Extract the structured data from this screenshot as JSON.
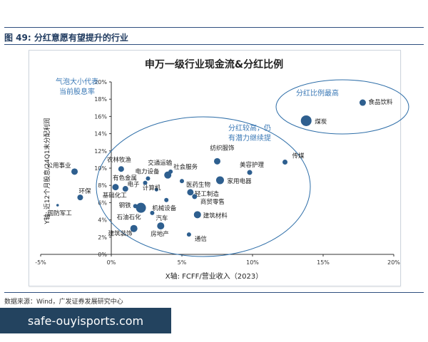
{
  "figure": {
    "caption": "图 49:  分红意愿有望提升的行业",
    "source": "数据来源：Wind，广发证券发展研究中心"
  },
  "watermark": {
    "text": "safe-ouyisports.com"
  },
  "chart_data": {
    "type": "scatter",
    "title": "申万一级行业现金流&分红比例",
    "xlabel": "X轴: FCFF/营业收入（2023）",
    "ylabel": "Y轴: 近12个月股息/24Q1末分配利润",
    "xlim": [
      -5,
      20
    ],
    "ylim": [
      0,
      20
    ],
    "x_ticks": [
      "-5%",
      "0%",
      "5%",
      "10%",
      "15%",
      "20%"
    ],
    "y_ticks": [
      "0%",
      "2%",
      "4%",
      "6%",
      "8%",
      "10%",
      "12%",
      "14%",
      "16%",
      "18%",
      "20%"
    ],
    "grid": false,
    "size_note": "气泡大小代表\n当前股息率",
    "annotations": [
      "分红比例最高",
      "分红较高，仍\n有潜力继续提"
    ],
    "points": [
      {
        "name": "食品饮料",
        "x": 17.8,
        "y": 17.6,
        "size": 9
      },
      {
        "name": "煤炭",
        "x": 13.8,
        "y": 15.5,
        "size": 15
      },
      {
        "name": "传媒",
        "x": 12.3,
        "y": 10.7,
        "size": 7
      },
      {
        "name": "美容护理",
        "x": 9.8,
        "y": 9.5,
        "size": 7
      },
      {
        "name": "纺织服饰",
        "x": 7.5,
        "y": 10.8,
        "size": 9
      },
      {
        "name": "社会服务",
        "x": 4.2,
        "y": 9.6,
        "size": 6
      },
      {
        "name": "交通运输",
        "x": 4.0,
        "y": 9.2,
        "size": 10
      },
      {
        "name": "医药生物",
        "x": 5.0,
        "y": 8.5,
        "size": 6
      },
      {
        "name": "家用电器",
        "x": 7.7,
        "y": 8.6,
        "size": 11
      },
      {
        "name": "电力设备",
        "x": 2.6,
        "y": 8.8,
        "size": 6
      },
      {
        "name": "电子",
        "x": 2.4,
        "y": 8.3,
        "size": 6
      },
      {
        "name": "轻工制造",
        "x": 5.6,
        "y": 7.2,
        "size": 9
      },
      {
        "name": "商贸零售",
        "x": 5.9,
        "y": 6.7,
        "size": 7
      },
      {
        "name": "计算机",
        "x": 3.2,
        "y": 7.5,
        "size": 5
      },
      {
        "name": "机械设备",
        "x": 3.9,
        "y": 6.3,
        "size": 6
      },
      {
        "name": "建筑材料",
        "x": 6.1,
        "y": 4.6,
        "size": 10
      },
      {
        "name": "农林牧渔",
        "x": 0.7,
        "y": 9.9,
        "size": 8
      },
      {
        "name": "公用事业",
        "x": -2.6,
        "y": 9.6,
        "size": 9
      },
      {
        "name": "有色金属",
        "x": 0.3,
        "y": 7.8,
        "size": 9
      },
      {
        "name": "基础化工",
        "x": 1.0,
        "y": 7.6,
        "size": 8
      },
      {
        "name": "钢铁",
        "x": 1.7,
        "y": 5.6,
        "size": 6
      },
      {
        "name": "环保",
        "x": -2.2,
        "y": 6.6,
        "size": 8
      },
      {
        "name": "石油石化",
        "x": 2.1,
        "y": 5.4,
        "size": 14
      },
      {
        "name": "国防军工",
        "x": -3.8,
        "y": 5.7,
        "size": 3
      },
      {
        "name": "汽车",
        "x": 2.9,
        "y": 4.8,
        "size": 6
      },
      {
        "name": "建筑装饰",
        "x": 1.6,
        "y": 3.0,
        "size": 10
      },
      {
        "name": "房地产",
        "x": 3.5,
        "y": 3.3,
        "size": 10
      },
      {
        "name": "通信",
        "x": 5.5,
        "y": 2.3,
        "size": 6
      }
    ],
    "colors": {
      "point": "#2e5f8f",
      "ellipse": "#2e6ea8",
      "annotation": "#3b79b6",
      "axis": "#333333"
    }
  }
}
